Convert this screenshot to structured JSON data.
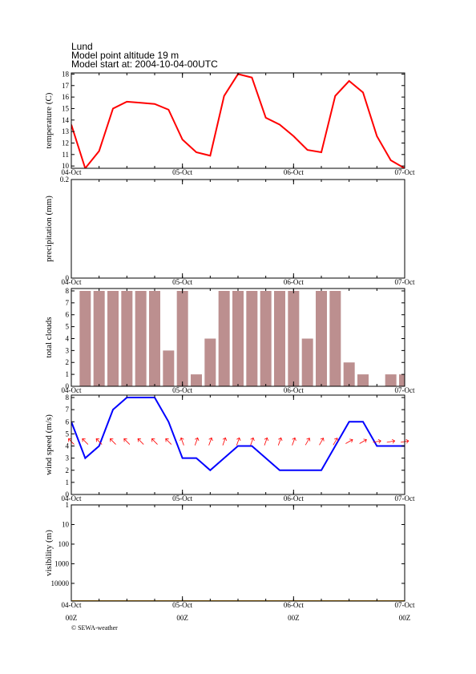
{
  "header": {
    "lines": [
      "Lund",
      "Model point altitude  19 m",
      "Model start at: 2004-10-04-00UTC"
    ]
  },
  "footer": "© SEWA-weather",
  "x_sublabels": [
    "00Z",
    "00Z",
    "00Z",
    "00Z"
  ],
  "chart_data": [
    {
      "type": "line",
      "ylabel": "temperature (C)",
      "xlim": [
        0,
        72
      ],
      "xticks": [
        {
          "value": 0,
          "label": "04-Oct"
        },
        {
          "value": 24,
          "label": "05-Oct"
        },
        {
          "value": 48,
          "label": "06-Oct"
        },
        {
          "value": 72,
          "label": "07-Oct"
        }
      ],
      "ylim": [
        9.8,
        18.1
      ],
      "yticks": [
        10,
        11,
        12,
        13,
        14,
        15,
        16,
        17,
        18
      ],
      "x": [
        0,
        3,
        6,
        9,
        12,
        15,
        18,
        21,
        24,
        27,
        30,
        33,
        36,
        39,
        42,
        45,
        48,
        51,
        54,
        57,
        60,
        63,
        66,
        69,
        72
      ],
      "series": [
        {
          "color": "#ff0000",
          "values": [
            13.6,
            9.8,
            11.3,
            15.0,
            15.6,
            15.5,
            15.4,
            14.9,
            12.3,
            11.2,
            10.9,
            16.1,
            18.0,
            17.7,
            14.2,
            13.6,
            12.6,
            11.4,
            11.2,
            16.1,
            17.4,
            16.4,
            12.6,
            10.5,
            9.8
          ]
        }
      ]
    },
    {
      "type": "bar",
      "ylabel": "precipitation (mm)",
      "xlim": [
        0,
        72
      ],
      "xticks": [
        {
          "value": 0,
          "label": "04-Oct"
        },
        {
          "value": 24,
          "label": "05-Oct"
        },
        {
          "value": 48,
          "label": "06-Oct"
        },
        {
          "value": 72,
          "label": "07-Oct"
        }
      ],
      "ylim": [
        0,
        0.2
      ],
      "yticks": [
        0,
        0.2
      ],
      "x": [],
      "series": []
    },
    {
      "type": "bar",
      "ylabel": "total clouds",
      "xlim": [
        0,
        72
      ],
      "xticks": [
        {
          "value": 0,
          "label": "04-Oct"
        },
        {
          "value": 24,
          "label": "05-Oct"
        },
        {
          "value": 48,
          "label": "06-Oct"
        },
        {
          "value": 72,
          "label": "07-Oct"
        }
      ],
      "ylim": [
        0,
        8.2
      ],
      "yticks": [
        0,
        1,
        2,
        3,
        4,
        5,
        6,
        7,
        8
      ],
      "x": [
        3,
        6,
        9,
        12,
        15,
        18,
        21,
        24,
        27,
        30,
        33,
        36,
        39,
        42,
        45,
        48,
        51,
        54,
        57,
        60,
        63,
        66,
        69,
        72
      ],
      "series": [
        {
          "color": "#bc8f8f",
          "values": [
            8,
            8,
            8,
            8,
            8,
            8,
            3,
            8,
            1,
            4,
            8,
            8,
            8,
            8,
            8,
            8,
            4,
            8,
            8,
            2,
            1,
            0,
            1,
            1
          ]
        }
      ]
    },
    {
      "type": "line",
      "ylabel": "wind speed (m/s)",
      "xlim": [
        0,
        72
      ],
      "xticks": [
        {
          "value": 0,
          "label": "04-Oct"
        },
        {
          "value": 24,
          "label": "05-Oct"
        },
        {
          "value": 48,
          "label": "06-Oct"
        },
        {
          "value": 72,
          "label": "07-Oct"
        }
      ],
      "ylim": [
        0,
        8.2
      ],
      "yticks": [
        0,
        1,
        2,
        3,
        4,
        5,
        6,
        7,
        8
      ],
      "x": [
        0,
        3,
        6,
        9,
        12,
        15,
        18,
        21,
        24,
        27,
        30,
        33,
        36,
        39,
        42,
        45,
        48,
        51,
        54,
        57,
        60,
        63,
        66,
        69,
        72
      ],
      "series": [
        {
          "color": "#0000ff",
          "values": [
            6,
            3,
            4,
            7,
            8,
            8,
            8,
            6,
            3,
            3,
            2,
            3,
            4,
            4,
            3,
            2,
            2,
            2,
            2,
            4,
            6,
            6,
            4,
            4,
            4
          ]
        }
      ],
      "wind_direction": {
        "color": "#ff0000",
        "values": [
          135,
          135,
          135,
          135,
          135,
          135,
          135,
          135,
          160,
          200,
          200,
          200,
          200,
          200,
          200,
          200,
          200,
          210,
          210,
          210,
          240,
          240,
          260,
          260,
          260
        ]
      }
    },
    {
      "type": "line",
      "ylabel": "visibility (m)",
      "xlim": [
        0,
        72
      ],
      "log": true,
      "inverted": true,
      "xticks": [
        {
          "value": 0,
          "label": "04-Oct"
        },
        {
          "value": 24,
          "label": "05-Oct"
        },
        {
          "value": 48,
          "label": "06-Oct"
        },
        {
          "value": 72,
          "label": "07-Oct"
        }
      ],
      "ylim": [
        1,
        80000
      ],
      "yticks": [
        1,
        10,
        100,
        1000,
        10000
      ],
      "x": [
        0,
        3,
        6,
        9,
        12,
        15,
        18,
        21,
        24,
        27,
        30,
        33,
        36,
        39,
        42,
        45,
        48,
        51,
        54,
        57,
        60,
        63,
        66,
        69,
        72
      ],
      "series": [
        {
          "color": "#c08000",
          "values": [
            80000,
            80000,
            80000,
            80000,
            80000,
            80000,
            80000,
            80000,
            80000,
            80000,
            80000,
            80000,
            80000,
            80000,
            80000,
            80000,
            80000,
            80000,
            80000,
            80000,
            80000,
            80000,
            80000,
            80000,
            80000
          ]
        }
      ]
    }
  ]
}
